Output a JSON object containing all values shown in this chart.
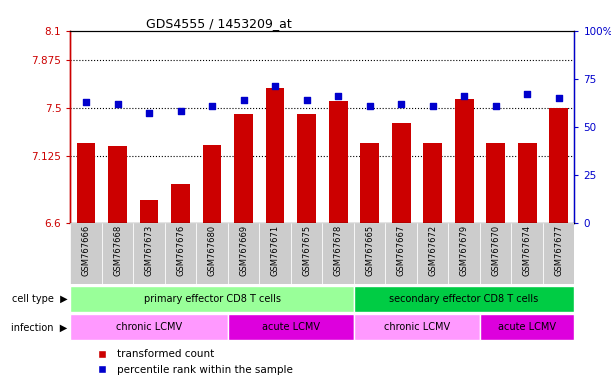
{
  "title": "GDS4555 / 1453209_at",
  "samples": [
    "GSM767666",
    "GSM767668",
    "GSM767673",
    "GSM767676",
    "GSM767680",
    "GSM767669",
    "GSM767671",
    "GSM767675",
    "GSM767678",
    "GSM767665",
    "GSM767667",
    "GSM767672",
    "GSM767679",
    "GSM767670",
    "GSM767674",
    "GSM767677"
  ],
  "bar_values": [
    7.22,
    7.2,
    6.78,
    6.9,
    7.21,
    7.45,
    7.65,
    7.45,
    7.55,
    7.22,
    7.38,
    7.22,
    7.57,
    7.22,
    7.22,
    7.5
  ],
  "dot_values": [
    63,
    62,
    57,
    58,
    61,
    64,
    71,
    64,
    66,
    61,
    62,
    61,
    66,
    61,
    67,
    65
  ],
  "ylim_left": [
    6.6,
    8.1
  ],
  "ylim_right": [
    0,
    100
  ],
  "yticks_left": [
    6.6,
    7.125,
    7.5,
    7.875,
    8.1
  ],
  "ytick_labels_left": [
    "6.6",
    "7.125",
    "7.5",
    "7.875",
    "8.1"
  ],
  "yticks_right": [
    0,
    25,
    50,
    75,
    100
  ],
  "ytick_labels_right": [
    "0",
    "25",
    "50",
    "75",
    "100%"
  ],
  "hlines": [
    7.125,
    7.5,
    7.875
  ],
  "bar_color": "#cc0000",
  "dot_color": "#0000cc",
  "cell_type_groups": [
    {
      "label": "primary effector CD8 T cells",
      "start": 0,
      "end": 9,
      "color": "#99ff99"
    },
    {
      "label": "secondary effector CD8 T cells",
      "start": 9,
      "end": 16,
      "color": "#00cc44"
    }
  ],
  "infection_groups": [
    {
      "label": "chronic LCMV",
      "start": 0,
      "end": 5,
      "color": "#ff99ff"
    },
    {
      "label": "acute LCMV",
      "start": 5,
      "end": 9,
      "color": "#dd00dd"
    },
    {
      "label": "chronic LCMV",
      "start": 9,
      "end": 13,
      "color": "#ff99ff"
    },
    {
      "label": "acute LCMV",
      "start": 13,
      "end": 16,
      "color": "#dd00dd"
    }
  ],
  "legend_items": [
    {
      "label": "transformed count",
      "color": "#cc0000"
    },
    {
      "label": "percentile rank within the sample",
      "color": "#0000cc"
    }
  ],
  "left_axis_color": "#cc0000",
  "right_axis_color": "#0000cc",
  "xtick_bg_color": "#cccccc",
  "cell_type_label": "cell type",
  "infection_label": "infection"
}
